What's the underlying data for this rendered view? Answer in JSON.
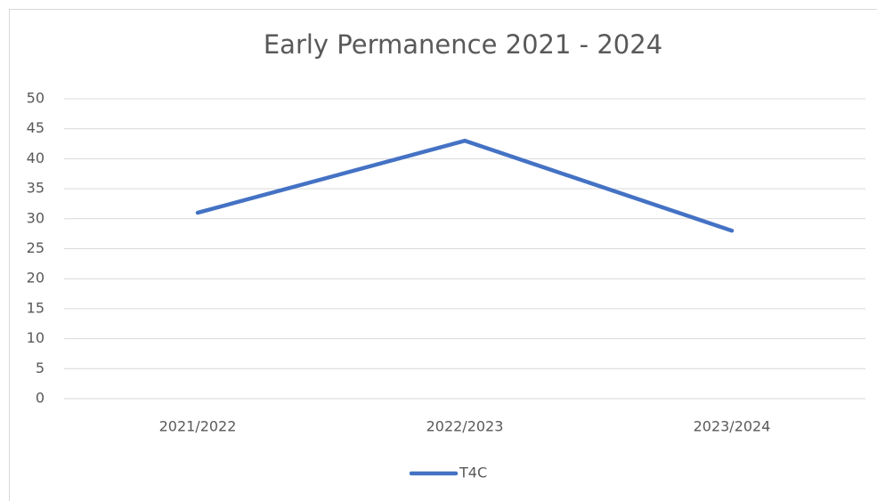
{
  "chart_data": {
    "type": "line",
    "title": "Early Permanence 2021 - 2024",
    "categories": [
      "2021/2022",
      "2022/2023",
      "2023/2024"
    ],
    "series": [
      {
        "name": "T4C",
        "color": "#4472c4",
        "values": [
          31,
          43,
          28
        ]
      }
    ],
    "ylim": [
      0,
      50
    ],
    "yticks": [
      0,
      5,
      10,
      15,
      20,
      25,
      30,
      35,
      40,
      45,
      50
    ],
    "grid": true,
    "legend": "bottom"
  }
}
